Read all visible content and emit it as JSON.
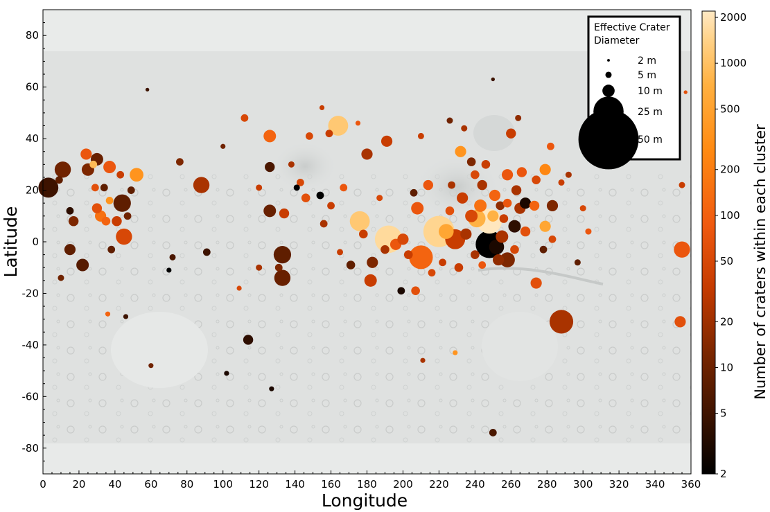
{
  "chart_data": {
    "type": "scatter",
    "xlabel": "Longitude",
    "ylabel": "Latitude",
    "xlim": [
      0,
      360
    ],
    "ylim": [
      -90,
      90
    ],
    "x_ticks": [
      "0",
      "20",
      "40",
      "60",
      "80",
      "100",
      "120",
      "140",
      "160",
      "180",
      "200",
      "220",
      "240",
      "260",
      "280",
      "300",
      "320",
      "340",
      "360"
    ],
    "y_ticks": [
      "80",
      "60",
      "40",
      "20",
      "0",
      "-20",
      "-40",
      "-60",
      "-80"
    ],
    "grid": false,
    "background": "shaded-relief basemap of Mars (grey)",
    "legend": {
      "title_line1": "Effective Crater",
      "title_line2": "Diameter",
      "position": "top-right",
      "entries": [
        {
          "label": "2 m",
          "diameter_m": 2
        },
        {
          "label": "5 m",
          "diameter_m": 5
        },
        {
          "label": "10 m",
          "diameter_m": 10
        },
        {
          "label": "25 m",
          "diameter_m": 25
        },
        {
          "label": "50 m",
          "diameter_m": 50
        }
      ]
    },
    "colorbar": {
      "label": "Number of craters within each cluster",
      "scale": "log",
      "range": [
        2,
        2200
      ],
      "ticks": [
        "2",
        "5",
        "10",
        "20",
        "50",
        "100",
        "200",
        "500",
        "1000",
        "2000"
      ],
      "colormap": [
        "#000000",
        "#3a1200",
        "#7a2600",
        "#c43a00",
        "#f05a10",
        "#ff8a12",
        "#ffb040",
        "#ffd38a",
        "#ffe9c4"
      ]
    },
    "points": [
      {
        "lon": 3,
        "lat": 21,
        "d": 16,
        "n": 5
      },
      {
        "lon": 11,
        "lat": 28,
        "d": 13,
        "n": 10
      },
      {
        "lon": 9,
        "lat": 24,
        "d": 6,
        "n": 8
      },
      {
        "lon": 15,
        "lat": 12,
        "d": 6,
        "n": 4
      },
      {
        "lon": 17,
        "lat": 8,
        "d": 8,
        "n": 12
      },
      {
        "lon": 15,
        "lat": -3,
        "d": 9,
        "n": 8
      },
      {
        "lon": 22,
        "lat": -9,
        "d": 10,
        "n": 7
      },
      {
        "lon": 25,
        "lat": 28,
        "d": 10,
        "n": 12
      },
      {
        "lon": 28,
        "lat": 30,
        "d": 6,
        "n": 500
      },
      {
        "lon": 30,
        "lat": 32,
        "d": 10,
        "n": 9
      },
      {
        "lon": 24,
        "lat": 34,
        "d": 9,
        "n": 60
      },
      {
        "lon": 37,
        "lat": 29,
        "d": 10,
        "n": 60
      },
      {
        "lon": 29,
        "lat": 21,
        "d": 6,
        "n": 50
      },
      {
        "lon": 34,
        "lat": 21,
        "d": 6,
        "n": 8
      },
      {
        "lon": 32,
        "lat": 10,
        "d": 9,
        "n": 100
      },
      {
        "lon": 35,
        "lat": 8,
        "d": 7,
        "n": 80
      },
      {
        "lon": 30,
        "lat": 13,
        "d": 8,
        "n": 50
      },
      {
        "lon": 37,
        "lat": 16,
        "d": 6,
        "n": 200
      },
      {
        "lon": 41,
        "lat": 8,
        "d": 8,
        "n": 30
      },
      {
        "lon": 44,
        "lat": 15,
        "d": 14,
        "n": 8
      },
      {
        "lon": 45,
        "lat": 2,
        "d": 13,
        "n": 40
      },
      {
        "lon": 43,
        "lat": 26,
        "d": 6,
        "n": 30
      },
      {
        "lon": 49,
        "lat": 20,
        "d": 6,
        "n": 8
      },
      {
        "lon": 52,
        "lat": 26,
        "d": 11,
        "n": 200
      },
      {
        "lon": 47,
        "lat": 10,
        "d": 6,
        "n": 10
      },
      {
        "lon": 38,
        "lat": -3,
        "d": 6,
        "n": 8
      },
      {
        "lon": 10,
        "lat": -14,
        "d": 5,
        "n": 10
      },
      {
        "lon": 46,
        "lat": -29,
        "d": 4,
        "n": 5
      },
      {
        "lon": 36,
        "lat": -28,
        "d": 4,
        "n": 80
      },
      {
        "lon": 60,
        "lat": -48,
        "d": 4,
        "n": 10
      },
      {
        "lon": 72,
        "lat": -6,
        "d": 5,
        "n": 6
      },
      {
        "lon": 70,
        "lat": -11,
        "d": 4,
        "n": 2
      },
      {
        "lon": 76,
        "lat": 31,
        "d": 6,
        "n": 12
      },
      {
        "lon": 88,
        "lat": 22,
        "d": 13,
        "n": 20
      },
      {
        "lon": 91,
        "lat": -4,
        "d": 6,
        "n": 5
      },
      {
        "lon": 100,
        "lat": 37,
        "d": 4,
        "n": 10
      },
      {
        "lon": 112,
        "lat": 48,
        "d": 6,
        "n": 40
      },
      {
        "lon": 114,
        "lat": -38,
        "d": 8,
        "n": 4
      },
      {
        "lon": 109,
        "lat": -18,
        "d": 4,
        "n": 40
      },
      {
        "lon": 126,
        "lat": 41,
        "d": 10,
        "n": 80
      },
      {
        "lon": 126,
        "lat": 12,
        "d": 10,
        "n": 9
      },
      {
        "lon": 126,
        "lat": 29,
        "d": 8,
        "n": 6
      },
      {
        "lon": 133,
        "lat": -5,
        "d": 14,
        "n": 8
      },
      {
        "lon": 133,
        "lat": -14,
        "d": 13,
        "n": 9
      },
      {
        "lon": 134,
        "lat": 11,
        "d": 8,
        "n": 30
      },
      {
        "lon": 131,
        "lat": -10,
        "d": 6,
        "n": 12
      },
      {
        "lon": 141,
        "lat": 21,
        "d": 5,
        "n": 2
      },
      {
        "lon": 146,
        "lat": 17,
        "d": 7,
        "n": 50
      },
      {
        "lon": 154,
        "lat": 18,
        "d": 6,
        "n": 2
      },
      {
        "lon": 164,
        "lat": 45,
        "d": 16,
        "n": 700
      },
      {
        "lon": 148,
        "lat": 41,
        "d": 6,
        "n": 40
      },
      {
        "lon": 159,
        "lat": 42,
        "d": 6,
        "n": 30
      },
      {
        "lon": 167,
        "lat": 21,
        "d": 6,
        "n": 60
      },
      {
        "lon": 176,
        "lat": 8,
        "d": 16,
        "n": 700
      },
      {
        "lon": 180,
        "lat": 34,
        "d": 9,
        "n": 20
      },
      {
        "lon": 183,
        "lat": -8,
        "d": 9,
        "n": 12
      },
      {
        "lon": 182,
        "lat": -15,
        "d": 10,
        "n": 30
      },
      {
        "lon": 178,
        "lat": 3,
        "d": 7,
        "n": 30
      },
      {
        "lon": 191,
        "lat": 39,
        "d": 9,
        "n": 30
      },
      {
        "lon": 192,
        "lat": 1,
        "d": 22,
        "n": 1200
      },
      {
        "lon": 196,
        "lat": -1,
        "d": 9,
        "n": 60
      },
      {
        "lon": 199,
        "lat": -19,
        "d": 6,
        "n": 3
      },
      {
        "lon": 200,
        "lat": 1,
        "d": 9,
        "n": 40
      },
      {
        "lon": 203,
        "lat": -5,
        "d": 7,
        "n": 30
      },
      {
        "lon": 208,
        "lat": 13,
        "d": 10,
        "n": 60
      },
      {
        "lon": 210,
        "lat": -6,
        "d": 19,
        "n": 80
      },
      {
        "lon": 207,
        "lat": -19,
        "d": 7,
        "n": 50
      },
      {
        "lon": 220,
        "lat": 4,
        "d": 25,
        "n": 1000
      },
      {
        "lon": 224,
        "lat": 4,
        "d": 12,
        "n": 300
      },
      {
        "lon": 229,
        "lat": 1,
        "d": 16,
        "n": 30
      },
      {
        "lon": 232,
        "lat": 35,
        "d": 9,
        "n": 200
      },
      {
        "lon": 227,
        "lat": 22,
        "d": 6,
        "n": 20
      },
      {
        "lon": 233,
        "lat": 17,
        "d": 9,
        "n": 30
      },
      {
        "lon": 235,
        "lat": 3,
        "d": 9,
        "n": 20
      },
      {
        "lon": 238,
        "lat": 10,
        "d": 10,
        "n": 40
      },
      {
        "lon": 241,
        "lat": 9,
        "d": 14,
        "n": 400
      },
      {
        "lon": 243,
        "lat": 14,
        "d": 10,
        "n": 100
      },
      {
        "lon": 248,
        "lat": 8,
        "d": 20,
        "n": 2000
      },
      {
        "lon": 251,
        "lat": 18,
        "d": 9,
        "n": 80
      },
      {
        "lon": 250,
        "lat": 10,
        "d": 9,
        "n": 400
      },
      {
        "lon": 248,
        "lat": -1,
        "d": 22,
        "n": 2
      },
      {
        "lon": 252,
        "lat": -2,
        "d": 12,
        "n": 3
      },
      {
        "lon": 255,
        "lat": 2,
        "d": 10,
        "n": 20
      },
      {
        "lon": 253,
        "lat": -7,
        "d": 9,
        "n": 15
      },
      {
        "lon": 258,
        "lat": -7,
        "d": 12,
        "n": 12
      },
      {
        "lon": 262,
        "lat": 6,
        "d": 10,
        "n": 4
      },
      {
        "lon": 265,
        "lat": 13,
        "d": 9,
        "n": 20
      },
      {
        "lon": 268,
        "lat": 15,
        "d": 9,
        "n": 3
      },
      {
        "lon": 273,
        "lat": 14,
        "d": 8,
        "n": 80
      },
      {
        "lon": 279,
        "lat": 6,
        "d": 9,
        "n": 300
      },
      {
        "lon": 283,
        "lat": 14,
        "d": 9,
        "n": 12
      },
      {
        "lon": 283,
        "lat": 1,
        "d": 6,
        "n": 40
      },
      {
        "lon": 278,
        "lat": -3,
        "d": 6,
        "n": 8
      },
      {
        "lon": 274,
        "lat": -16,
        "d": 9,
        "n": 50
      },
      {
        "lon": 258,
        "lat": 26,
        "d": 9,
        "n": 60
      },
      {
        "lon": 263,
        "lat": 20,
        "d": 8,
        "n": 20
      },
      {
        "lon": 266,
        "lat": 27,
        "d": 8,
        "n": 60
      },
      {
        "lon": 274,
        "lat": 24,
        "d": 7,
        "n": 40
      },
      {
        "lon": 279,
        "lat": 28,
        "d": 9,
        "n": 150
      },
      {
        "lon": 246,
        "lat": 30,
        "d": 7,
        "n": 30
      },
      {
        "lon": 260,
        "lat": 42,
        "d": 8,
        "n": 30
      },
      {
        "lon": 264,
        "lat": 48,
        "d": 5,
        "n": 15
      },
      {
        "lon": 282,
        "lat": 37,
        "d": 6,
        "n": 60
      },
      {
        "lon": 288,
        "lat": -31,
        "d": 19,
        "n": 20
      },
      {
        "lon": 355,
        "lat": -3,
        "d": 13,
        "n": 60
      },
      {
        "lon": 354,
        "lat": -31,
        "d": 9,
        "n": 50
      },
      {
        "lon": 355,
        "lat": 22,
        "d": 5,
        "n": 30
      },
      {
        "lon": 240,
        "lat": 26,
        "d": 7,
        "n": 40
      },
      {
        "lon": 238,
        "lat": 31,
        "d": 7,
        "n": 12
      },
      {
        "lon": 244,
        "lat": 22,
        "d": 8,
        "n": 20
      },
      {
        "lon": 254,
        "lat": 14,
        "d": 7,
        "n": 15
      },
      {
        "lon": 258,
        "lat": 15,
        "d": 7,
        "n": 60
      },
      {
        "lon": 256,
        "lat": 9,
        "d": 7,
        "n": 30
      },
      {
        "lon": 262,
        "lat": -3,
        "d": 7,
        "n": 40
      },
      {
        "lon": 268,
        "lat": 4,
        "d": 8,
        "n": 50
      },
      {
        "lon": 244,
        "lat": -9,
        "d": 6,
        "n": 60
      },
      {
        "lon": 240,
        "lat": -5,
        "d": 7,
        "n": 20
      },
      {
        "lon": 231,
        "lat": -10,
        "d": 7,
        "n": 30
      },
      {
        "lon": 222,
        "lat": -8,
        "d": 6,
        "n": 30
      },
      {
        "lon": 216,
        "lat": -12,
        "d": 6,
        "n": 40
      },
      {
        "lon": 226,
        "lat": 12,
        "d": 7,
        "n": 50
      },
      {
        "lon": 214,
        "lat": 22,
        "d": 8,
        "n": 60
      },
      {
        "lon": 206,
        "lat": 19,
        "d": 6,
        "n": 8
      },
      {
        "lon": 171,
        "lat": -9,
        "d": 7,
        "n": 8
      },
      {
        "lon": 190,
        "lat": -3,
        "d": 7,
        "n": 20
      },
      {
        "lon": 187,
        "lat": 17,
        "d": 5,
        "n": 40
      },
      {
        "lon": 160,
        "lat": 14,
        "d": 6,
        "n": 30
      },
      {
        "lon": 156,
        "lat": 7,
        "d": 6,
        "n": 20
      },
      {
        "lon": 165,
        "lat": -4,
        "d": 5,
        "n": 30
      },
      {
        "lon": 143,
        "lat": 23,
        "d": 6,
        "n": 40
      },
      {
        "lon": 138,
        "lat": 30,
        "d": 5,
        "n": 20
      },
      {
        "lon": 120,
        "lat": 21,
        "d": 5,
        "n": 30
      },
      {
        "lon": 155,
        "lat": 52,
        "d": 4,
        "n": 30
      },
      {
        "lon": 175,
        "lat": 46,
        "d": 4,
        "n": 60
      },
      {
        "lon": 210,
        "lat": 41,
        "d": 5,
        "n": 30
      },
      {
        "lon": 226,
        "lat": 47,
        "d": 5,
        "n": 10
      },
      {
        "lon": 234,
        "lat": 44,
        "d": 5,
        "n": 20
      },
      {
        "lon": 250,
        "lat": 63,
        "d": 3,
        "n": 5
      },
      {
        "lon": 250,
        "lat": -74,
        "d": 6,
        "n": 6
      },
      {
        "lon": 211,
        "lat": -46,
        "d": 4,
        "n": 20
      },
      {
        "lon": 229,
        "lat": -43,
        "d": 4,
        "n": 200
      },
      {
        "lon": 127,
        "lat": -57,
        "d": 4,
        "n": 3
      },
      {
        "lon": 102,
        "lat": -51,
        "d": 4,
        "n": 3
      },
      {
        "lon": 58,
        "lat": 59,
        "d": 3,
        "n": 5
      },
      {
        "lon": 357,
        "lat": 58,
        "d": 3,
        "n": 50
      },
      {
        "lon": 300,
        "lat": 13,
        "d": 5,
        "n": 40
      },
      {
        "lon": 303,
        "lat": 4,
        "d": 5,
        "n": 60
      },
      {
        "lon": 297,
        "lat": -8,
        "d": 5,
        "n": 8
      },
      {
        "lon": 292,
        "lat": 26,
        "d": 5,
        "n": 20
      },
      {
        "lon": 288,
        "lat": 23,
        "d": 5,
        "n": 30
      },
      {
        "lon": 120,
        "lat": -10,
        "d": 5,
        "n": 20
      }
    ]
  }
}
